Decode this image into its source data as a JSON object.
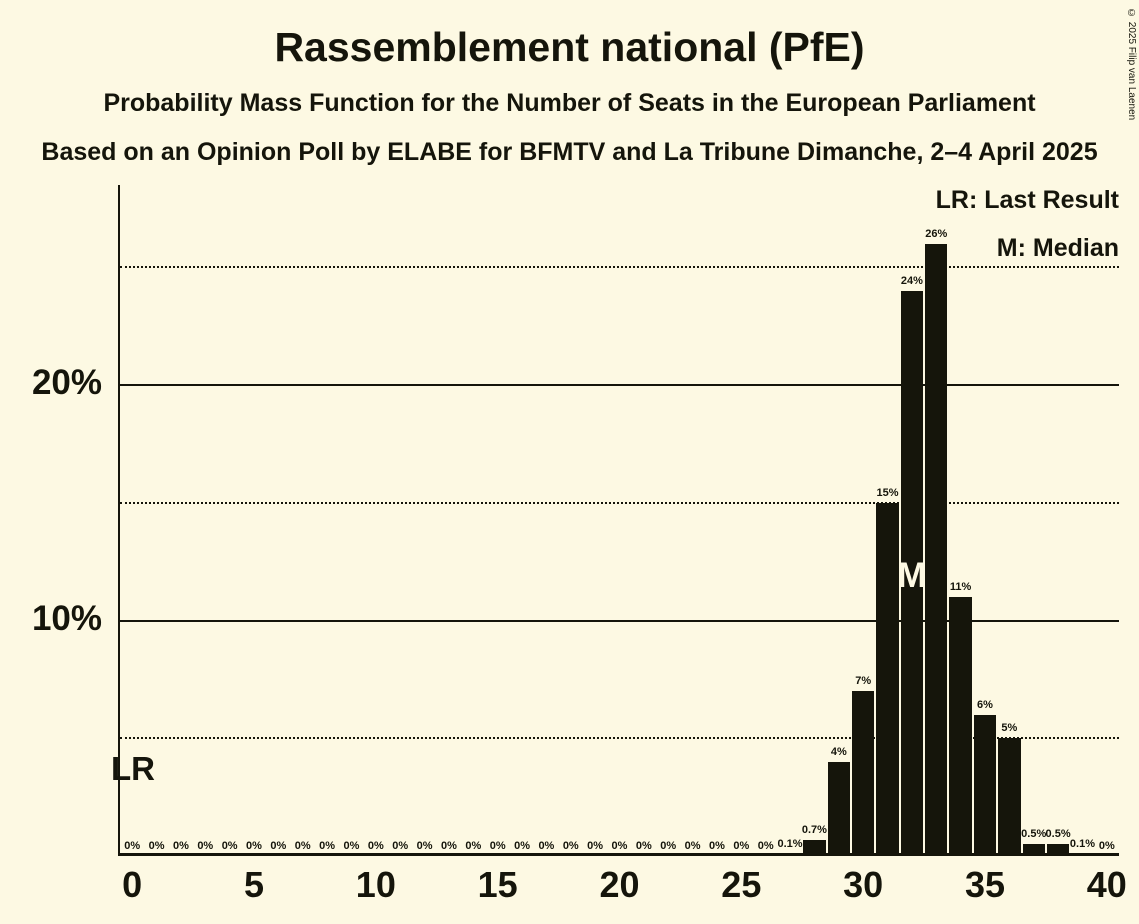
{
  "title": "Rassemblement national (PfE)",
  "subtitle": "Probability Mass Function for the Number of Seats in the European Parliament",
  "source_line": "Based on an Opinion Poll by ELABE for BFMTV and La Tribune Dimanche, 2–4 April 2025",
  "copyright": "© 2025 Filip van Laenen",
  "legend": {
    "last_result": "LR: Last Result",
    "median": "M: Median"
  },
  "annotations": {
    "last_result": "LR",
    "median": "M"
  },
  "colors": {
    "background": "#fdf9e3",
    "bar": "#15150b",
    "text": "#15150b",
    "median_text": "#fdf9e3"
  },
  "chart_data": {
    "type": "bar",
    "title": "Rassemblement national (PfE)",
    "x": [
      0,
      1,
      2,
      3,
      4,
      5,
      6,
      7,
      8,
      9,
      10,
      11,
      12,
      13,
      14,
      15,
      16,
      17,
      18,
      19,
      20,
      21,
      22,
      23,
      24,
      25,
      26,
      27,
      28,
      29,
      30,
      31,
      32,
      33,
      34,
      35,
      36,
      37,
      38,
      39,
      40
    ],
    "values": [
      0,
      0,
      0,
      0,
      0,
      0,
      0,
      0,
      0,
      0,
      0,
      0,
      0,
      0,
      0,
      0,
      0,
      0,
      0,
      0,
      0,
      0,
      0,
      0,
      0,
      0,
      0,
      0.1,
      0.7,
      4,
      7,
      15,
      24,
      26,
      11,
      6,
      5,
      0.5,
      0.5,
      0.1,
      0
    ],
    "labels": [
      "0%",
      "0%",
      "0%",
      "0%",
      "0%",
      "0%",
      "0%",
      "0%",
      "0%",
      "0%",
      "0%",
      "0%",
      "0%",
      "0%",
      "0%",
      "0%",
      "0%",
      "0%",
      "0%",
      "0%",
      "0%",
      "0%",
      "0%",
      "0%",
      "0%",
      "0%",
      "0%",
      "0.1%",
      "0.7%",
      "4%",
      "7%",
      "15%",
      "24%",
      "26%",
      "11%",
      "6%",
      "5%",
      "0.5%",
      "0.5%",
      "0.1%",
      "0%"
    ],
    "x_ticks": [
      0,
      5,
      10,
      15,
      20,
      25,
      30,
      35,
      40
    ],
    "y_ticks": [
      {
        "value": 10,
        "label": "10%"
      },
      {
        "value": 20,
        "label": "20%"
      }
    ],
    "y_solid_gridlines": [
      10,
      20
    ],
    "y_dotted_gridlines": [
      5,
      15,
      25
    ],
    "xlim": [
      0,
      40
    ],
    "ylim": [
      0,
      28.5
    ],
    "median_seat": 32,
    "last_result_seat": 0,
    "legend_position": "top-right",
    "grid": "horizontal-only"
  }
}
